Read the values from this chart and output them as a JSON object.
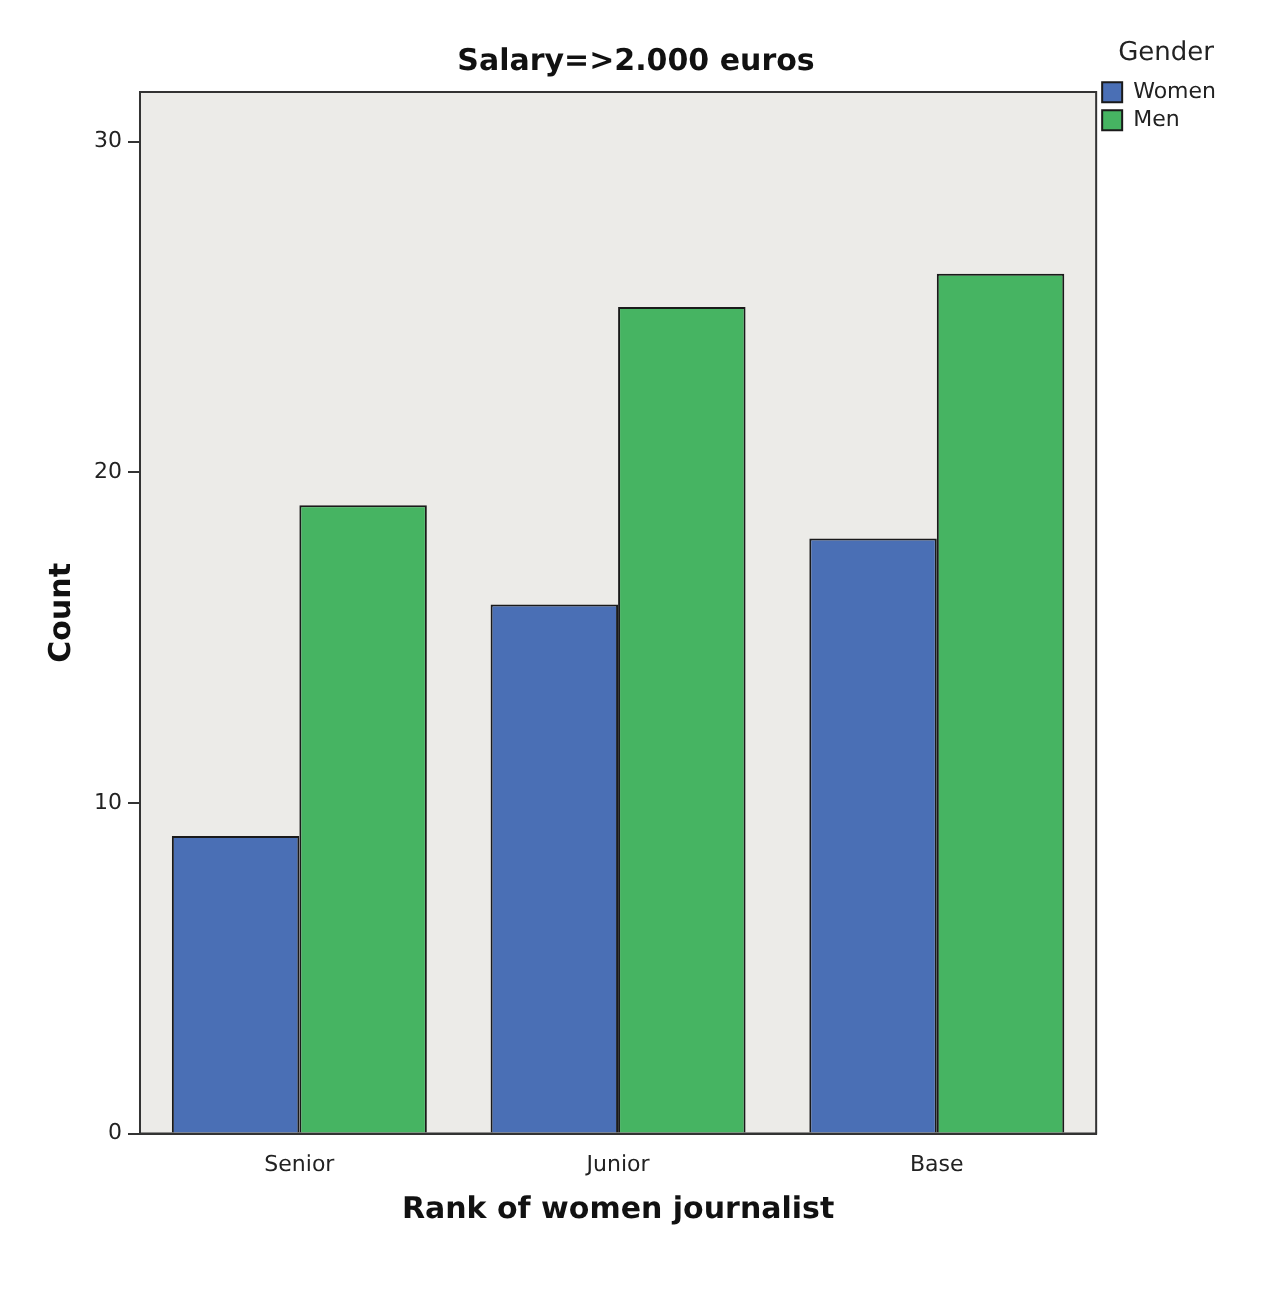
{
  "chart_data": {
    "type": "bar",
    "title": "Salary=>2.000 euros",
    "xlabel": "Rank of women journalist",
    "ylabel": "Count",
    "legend_title": "Gender",
    "categories": [
      "Senior",
      "Junior",
      "Base"
    ],
    "series": [
      {
        "name": "Women",
        "color": "#4a6fb5",
        "values": [
          9,
          16,
          18
        ]
      },
      {
        "name": "Men",
        "color": "#46b462",
        "values": [
          19,
          25,
          26
        ]
      }
    ],
    "ylim": [
      0,
      31.5
    ],
    "yticks": [
      0,
      10,
      20,
      30
    ],
    "grid": false,
    "legend": "top right"
  }
}
